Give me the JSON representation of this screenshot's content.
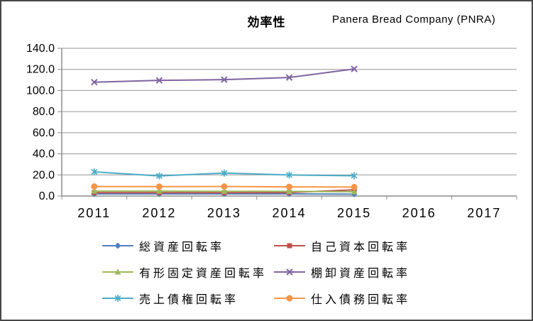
{
  "header": {
    "company": "Panera Bread Company (PNRA)"
  },
  "chart_data": {
    "type": "line",
    "title": "効率性",
    "xlabel": "",
    "ylabel": "",
    "categories": [
      "2011",
      "2012",
      "2013",
      "2014",
      "2015",
      "2016",
      "2017"
    ],
    "series": [
      {
        "name": "総資産回転率",
        "marker": "diamond",
        "color": "#4F81BD",
        "values": [
          2.0,
          2.0,
          2.0,
          2.0,
          1.8
        ]
      },
      {
        "name": "自己資本回転率",
        "marker": "square",
        "color": "#C0504D",
        "values": [
          3.2,
          3.2,
          3.1,
          3.3,
          5.9
        ]
      },
      {
        "name": "有形固定資産回転率",
        "marker": "triangle",
        "color": "#9BBB59",
        "values": [
          4.6,
          4.6,
          4.5,
          4.4,
          4.0
        ]
      },
      {
        "name": "棚卸資産回転率",
        "marker": "x",
        "color": "#8064A2",
        "values": [
          107.9,
          109.6,
          110.3,
          112.3,
          120.4
        ]
      },
      {
        "name": "売上債権回転率",
        "marker": "asterisk",
        "color": "#4BACC6",
        "values": [
          22.9,
          19.0,
          21.8,
          19.9,
          19.2
        ]
      },
      {
        "name": "仕入債務回転率",
        "marker": "circle",
        "color": "#F79646",
        "values": [
          9.0,
          8.9,
          9.0,
          8.7,
          8.5
        ]
      }
    ],
    "ylim": [
      0,
      140
    ],
    "ytick_step": 20,
    "ytick_decimals": 1,
    "grid": true,
    "gridline_color": "#969696",
    "axis_color": "#8C8C8C",
    "legend_position": "bottom"
  }
}
